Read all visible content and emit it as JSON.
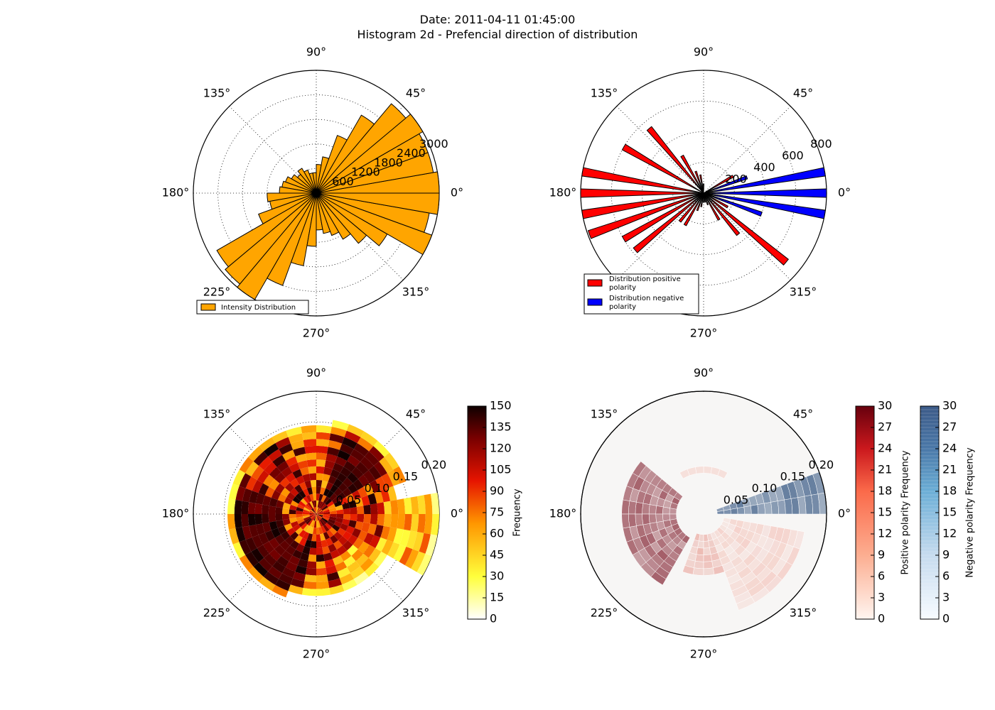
{
  "figure": {
    "title_line1": "Date: 2011-04-11 01:45:00",
    "title_line2": "Histogram 2d - Prefencial direction of distribution"
  },
  "angle_labels": [
    "0°",
    "45°",
    "90°",
    "135°",
    "180°",
    "225°",
    "270°",
    "315°"
  ],
  "colors": {
    "intensity": "#ffa500",
    "positive": "#ff0000",
    "negative": "#0000ff",
    "edge": "#000000"
  },
  "chart_data": [
    {
      "type": "polar-bar",
      "title": "",
      "rmax": 3000,
      "r_ticks": [
        600,
        1200,
        1800,
        2400,
        3000
      ],
      "series": [
        {
          "name": "Intensity Distribution",
          "bin_width_deg": 10,
          "theta_deg": [
            0,
            10,
            20,
            30,
            40,
            50,
            60,
            70,
            80,
            90,
            100,
            110,
            120,
            130,
            140,
            150,
            160,
            170,
            180,
            190,
            200,
            210,
            220,
            230,
            240,
            250,
            260,
            270,
            280,
            290,
            300,
            310,
            320,
            330,
            340,
            350
          ],
          "values": [
            3000,
            2900,
            2900,
            3000,
            2850,
            2200,
            1500,
            900,
            700,
            500,
            500,
            600,
            700,
            600,
            700,
            800,
            850,
            900,
            1200,
            1150,
            1500,
            2800,
            2900,
            3000,
            2400,
            1800,
            1300,
            900,
            1000,
            1100,
            1300,
            1600,
            2000,
            3000,
            2800,
            3000
          ]
        }
      ]
    },
    {
      "type": "polar-bar",
      "title": "",
      "rmax": 800,
      "r_ticks": [
        200,
        400,
        600,
        800
      ],
      "series": [
        {
          "name": "Distribution positive\n polarity",
          "bin_width_deg": 4,
          "theta_deg": [
            30,
            90,
            100,
            110,
            120,
            130,
            150,
            170,
            180,
            190,
            200,
            210,
            220,
            230,
            240,
            250,
            260,
            270,
            280,
            290,
            300,
            310,
            320,
            330,
            340,
            350
          ],
          "values": [
            220,
            60,
            120,
            150,
            280,
            550,
            600,
            810,
            800,
            810,
            790,
            600,
            580,
            240,
            240,
            120,
            90,
            60,
            60,
            80,
            200,
            350,
            700,
            180,
            170,
            180
          ]
        },
        {
          "name": "Distribution negative\n polarity",
          "bin_width_deg": 4,
          "theta_deg": [
            10,
            20,
            0,
            340,
            350
          ],
          "values": [
            810,
            300,
            800,
            400,
            810
          ]
        }
      ]
    },
    {
      "type": "heatmap",
      "subtype": "polar-2d-histogram",
      "rmax": 0.2,
      "r_ticks": [
        0.05,
        0.1,
        0.15,
        0.2
      ],
      "colorbar": {
        "label": "Frequency",
        "min": 0,
        "max": 150,
        "ticks": [
          0,
          15,
          30,
          45,
          60,
          75,
          90,
          105,
          120,
          135,
          150
        ]
      }
    },
    {
      "type": "heatmap",
      "subtype": "polar-2d-histogram",
      "rmax": 0.2,
      "r_ticks": [
        0.05,
        0.1,
        0.15,
        0.2
      ],
      "colorbars": [
        {
          "label": "Positive polarity Frequency",
          "min": 0,
          "max": 30,
          "ticks": [
            0,
            3,
            6,
            9,
            12,
            15,
            18,
            21,
            24,
            27,
            30
          ]
        },
        {
          "label": "Negative polarity Frequency",
          "min": 0,
          "max": 30,
          "ticks": [
            0,
            3,
            6,
            9,
            12,
            15,
            18,
            21,
            24,
            27,
            30
          ]
        }
      ]
    }
  ]
}
